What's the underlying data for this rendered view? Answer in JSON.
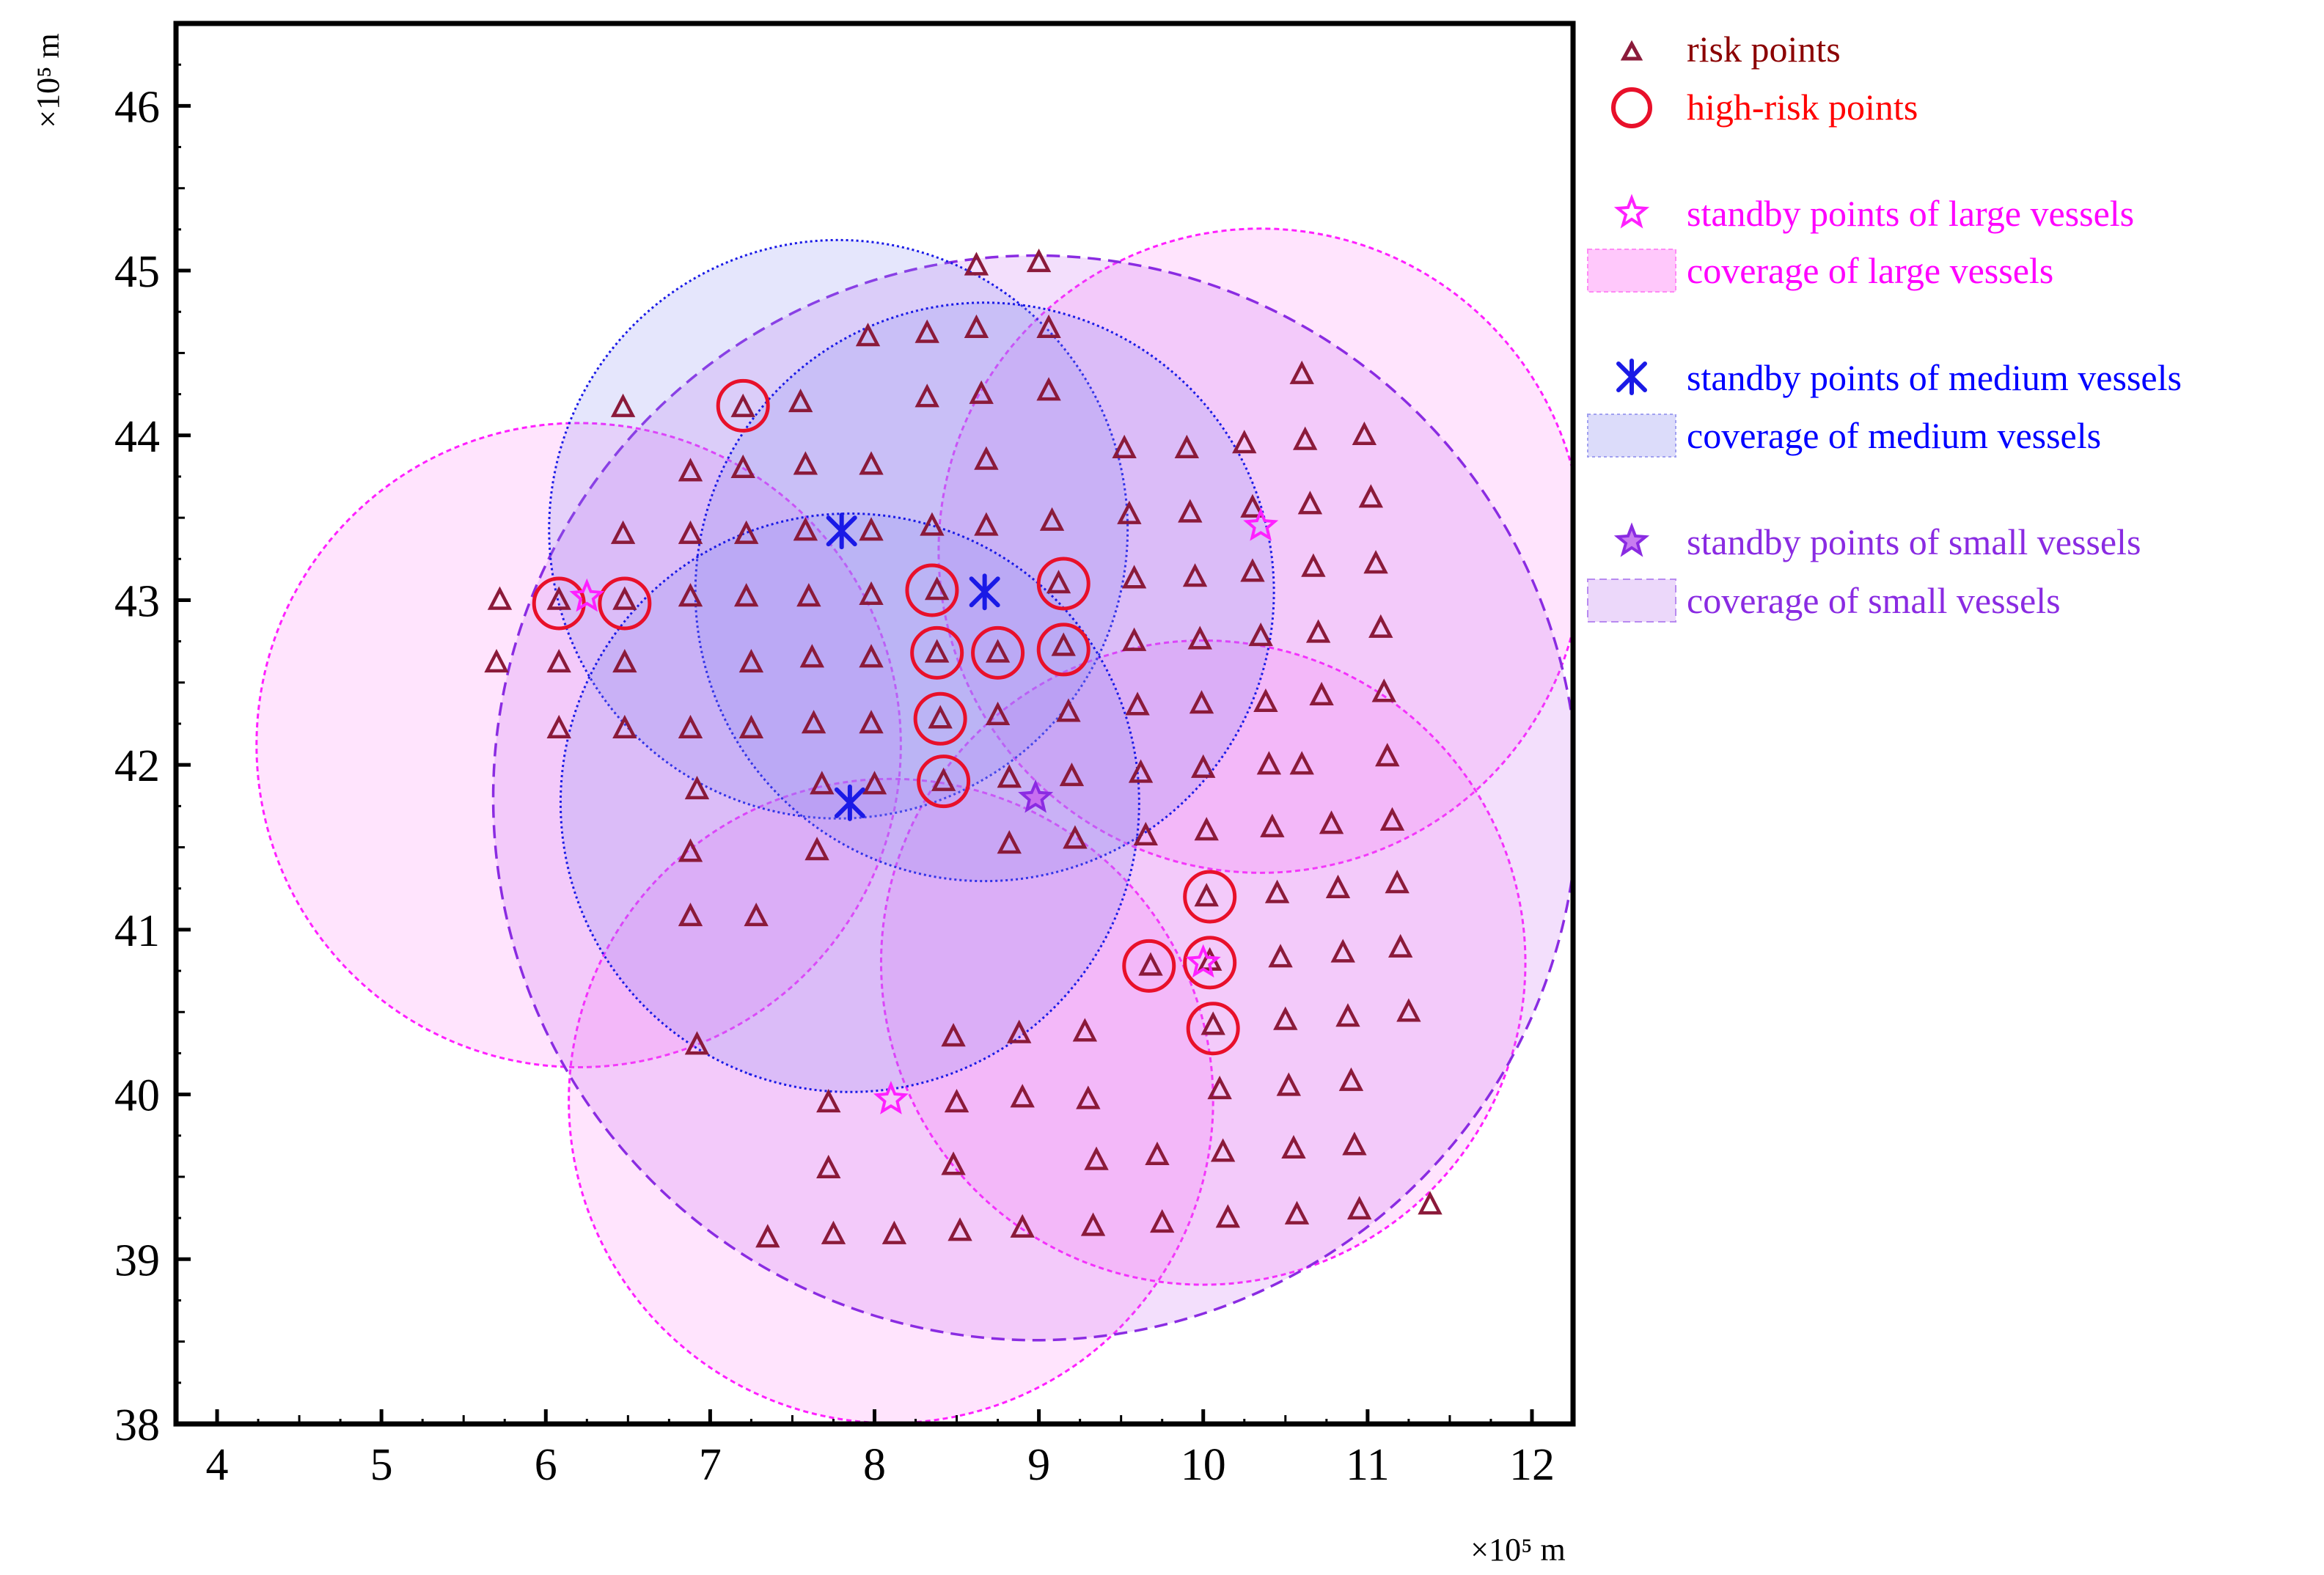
{
  "chart_data": {
    "type": "scatter",
    "title": "",
    "xlabel": "×10⁵ m",
    "ylabel": "×10⁵ m",
    "xlim": [
      3.75,
      12.25
    ],
    "ylim": [
      38,
      46.5
    ],
    "xticks": [
      4,
      5,
      6,
      7,
      8,
      9,
      10,
      11,
      12
    ],
    "yticks": [
      38,
      39,
      40,
      41,
      42,
      43,
      44,
      45,
      46
    ],
    "grid": false,
    "legend_position": "outside-right",
    "legend": [
      {
        "key": "risk",
        "label": "risk points"
      },
      {
        "key": "high",
        "label": "high-risk points"
      },
      {
        "key": "large_pt",
        "label": "standby points of large vessels"
      },
      {
        "key": "large_cov",
        "label": "coverage of large vessels"
      },
      {
        "key": "medium_pt",
        "label": "standby points of medium vessels"
      },
      {
        "key": "medium_cov",
        "label": "coverage of medium vessels"
      },
      {
        "key": "small_pt",
        "label": "standby points of small vessels"
      },
      {
        "key": "small_cov",
        "label": "coverage of small vessels"
      }
    ],
    "colors": {
      "axis": "#000000",
      "risk": "#8b1a3a",
      "high": "#e8102a",
      "large": "#ff20ff",
      "large_fill": "#ff5cf2",
      "medium": "#1a1ae6",
      "medium_fill": "#8a8cf0",
      "small": "#8a2be2",
      "small_fill": "#c86ef0",
      "legend_risk_text": "#8b0000",
      "legend_high_text": "#ff0000",
      "legend_large_text": "#ff00ff",
      "legend_medium_text": "#0000ff",
      "legend_small_text": "#8a2be2"
    },
    "risk_points": [
      [
        5.72,
        43.0
      ],
      [
        5.7,
        42.62
      ],
      [
        6.08,
        43.0
      ],
      [
        6.08,
        42.62
      ],
      [
        6.08,
        42.22
      ],
      [
        6.48,
        43.0
      ],
      [
        6.47,
        43.4
      ],
      [
        6.48,
        42.62
      ],
      [
        6.48,
        42.22
      ],
      [
        6.47,
        44.17
      ],
      [
        6.88,
        43.78
      ],
      [
        6.88,
        43.4
      ],
      [
        6.88,
        43.02
      ],
      [
        6.88,
        42.22
      ],
      [
        6.92,
        41.85
      ],
      [
        6.88,
        41.47
      ],
      [
        6.88,
        41.08
      ],
      [
        6.92,
        40.3
      ],
      [
        7.2,
        44.17
      ],
      [
        7.2,
        43.8
      ],
      [
        7.22,
        43.4
      ],
      [
        7.22,
        43.02
      ],
      [
        7.25,
        42.62
      ],
      [
        7.25,
        42.22
      ],
      [
        7.28,
        41.08
      ],
      [
        7.55,
        44.2
      ],
      [
        7.58,
        43.82
      ],
      [
        7.58,
        43.42
      ],
      [
        7.6,
        43.02
      ],
      [
        7.62,
        42.65
      ],
      [
        7.63,
        42.25
      ],
      [
        7.68,
        41.88
      ],
      [
        7.65,
        41.48
      ],
      [
        7.72,
        39.95
      ],
      [
        7.72,
        39.55
      ],
      [
        7.35,
        39.13
      ],
      [
        7.75,
        39.15
      ],
      [
        7.96,
        44.6
      ],
      [
        7.98,
        43.82
      ],
      [
        7.98,
        43.42
      ],
      [
        7.98,
        43.03
      ],
      [
        7.98,
        42.65
      ],
      [
        7.98,
        42.25
      ],
      [
        8.0,
        41.88
      ],
      [
        8.32,
        44.62
      ],
      [
        8.32,
        44.23
      ],
      [
        8.35,
        43.45
      ],
      [
        8.38,
        43.06
      ],
      [
        8.38,
        42.68
      ],
      [
        8.4,
        42.28
      ],
      [
        8.42,
        41.9
      ],
      [
        8.12,
        39.15
      ],
      [
        8.52,
        39.17
      ],
      [
        8.48,
        39.57
      ],
      [
        8.5,
        39.95
      ],
      [
        8.48,
        40.35
      ],
      [
        8.62,
        45.03
      ],
      [
        8.62,
        44.65
      ],
      [
        8.65,
        44.25
      ],
      [
        8.68,
        43.85
      ],
      [
        8.68,
        43.45
      ],
      [
        8.75,
        42.68
      ],
      [
        8.75,
        42.3
      ],
      [
        8.82,
        41.52
      ],
      [
        8.82,
        41.92
      ],
      [
        8.9,
        39.98
      ],
      [
        8.88,
        40.37
      ],
      [
        8.9,
        39.19
      ],
      [
        9.0,
        45.05
      ],
      [
        9.06,
        44.65
      ],
      [
        9.06,
        44.27
      ],
      [
        9.08,
        43.48
      ],
      [
        9.12,
        43.1
      ],
      [
        9.15,
        42.72
      ],
      [
        9.18,
        42.32
      ],
      [
        9.2,
        41.93
      ],
      [
        9.22,
        41.55
      ],
      [
        9.3,
        39.97
      ],
      [
        9.28,
        40.38
      ],
      [
        9.35,
        39.6
      ],
      [
        9.33,
        39.2
      ],
      [
        9.52,
        43.92
      ],
      [
        9.55,
        43.52
      ],
      [
        9.58,
        43.13
      ],
      [
        9.58,
        42.75
      ],
      [
        9.6,
        42.36
      ],
      [
        9.62,
        41.95
      ],
      [
        9.65,
        41.57
      ],
      [
        9.68,
        40.78
      ],
      [
        9.72,
        39.63
      ],
      [
        9.75,
        39.22
      ],
      [
        9.9,
        43.92
      ],
      [
        9.92,
        43.53
      ],
      [
        9.95,
        43.14
      ],
      [
        9.98,
        42.76
      ],
      [
        9.99,
        42.37
      ],
      [
        10.0,
        41.98
      ],
      [
        10.02,
        41.6
      ],
      [
        10.02,
        41.2
      ],
      [
        10.04,
        40.81
      ],
      [
        10.06,
        40.42
      ],
      [
        10.1,
        40.03
      ],
      [
        10.12,
        39.65
      ],
      [
        10.15,
        39.25
      ],
      [
        10.25,
        43.95
      ],
      [
        10.3,
        43.56
      ],
      [
        10.3,
        43.17
      ],
      [
        10.35,
        42.78
      ],
      [
        10.38,
        42.38
      ],
      [
        10.4,
        42.0
      ],
      [
        10.42,
        41.62
      ],
      [
        10.45,
        41.22
      ],
      [
        10.47,
        40.83
      ],
      [
        10.5,
        40.45
      ],
      [
        10.52,
        40.05
      ],
      [
        10.55,
        39.67
      ],
      [
        10.57,
        39.27
      ],
      [
        10.6,
        44.37
      ],
      [
        10.62,
        43.97
      ],
      [
        10.65,
        43.58
      ],
      [
        10.67,
        43.2
      ],
      [
        10.7,
        42.8
      ],
      [
        10.72,
        42.42
      ],
      [
        10.78,
        41.64
      ],
      [
        10.82,
        41.25
      ],
      [
        10.85,
        40.86
      ],
      [
        10.88,
        40.47
      ],
      [
        10.9,
        40.08
      ],
      [
        10.92,
        39.69
      ],
      [
        10.95,
        39.3
      ],
      [
        10.98,
        44.0
      ],
      [
        11.02,
        43.62
      ],
      [
        11.05,
        43.22
      ],
      [
        11.08,
        42.83
      ],
      [
        11.1,
        42.44
      ],
      [
        11.12,
        42.05
      ],
      [
        11.15,
        41.66
      ],
      [
        11.18,
        41.28
      ],
      [
        11.2,
        40.89
      ],
      [
        11.25,
        40.5
      ],
      [
        11.38,
        39.33
      ],
      [
        10.6,
        42.0
      ]
    ],
    "high_risk_points": [
      [
        6.08,
        42.98
      ],
      [
        6.48,
        42.98
      ],
      [
        7.2,
        44.18
      ],
      [
        8.35,
        43.06
      ],
      [
        8.38,
        42.68
      ],
      [
        8.4,
        42.28
      ],
      [
        8.42,
        41.9
      ],
      [
        8.75,
        42.68
      ],
      [
        9.15,
        43.1
      ],
      [
        9.15,
        42.7
      ],
      [
        9.67,
        40.78
      ],
      [
        10.04,
        41.2
      ],
      [
        10.04,
        40.8
      ],
      [
        10.06,
        40.4
      ]
    ],
    "standby_large": [
      [
        6.25,
        43.02
      ],
      [
        10.35,
        43.45
      ],
      [
        8.1,
        39.97
      ],
      [
        10.0,
        40.8
      ]
    ],
    "standby_medium": [
      [
        7.8,
        43.42
      ],
      [
        8.67,
        43.05
      ],
      [
        7.85,
        41.77
      ]
    ],
    "standby_small": [
      [
        8.98,
        41.8
      ]
    ],
    "coverage_large": [
      {
        "cx": 6.2,
        "cy": 42.12,
        "r": 1.96
      },
      {
        "cx": 10.35,
        "cy": 43.3,
        "r": 1.96
      },
      {
        "cx": 8.1,
        "cy": 39.96,
        "r": 1.96
      },
      {
        "cx": 10.0,
        "cy": 40.8,
        "r": 1.96
      }
    ],
    "coverage_medium": [
      {
        "cx": 7.78,
        "cy": 43.43,
        "r": 1.76
      },
      {
        "cx": 8.67,
        "cy": 43.05,
        "r": 1.76
      },
      {
        "cx": 7.85,
        "cy": 41.77,
        "r": 1.76
      }
    ],
    "coverage_small": [
      {
        "cx": 8.98,
        "cy": 41.8,
        "r": 3.3
      }
    ]
  }
}
